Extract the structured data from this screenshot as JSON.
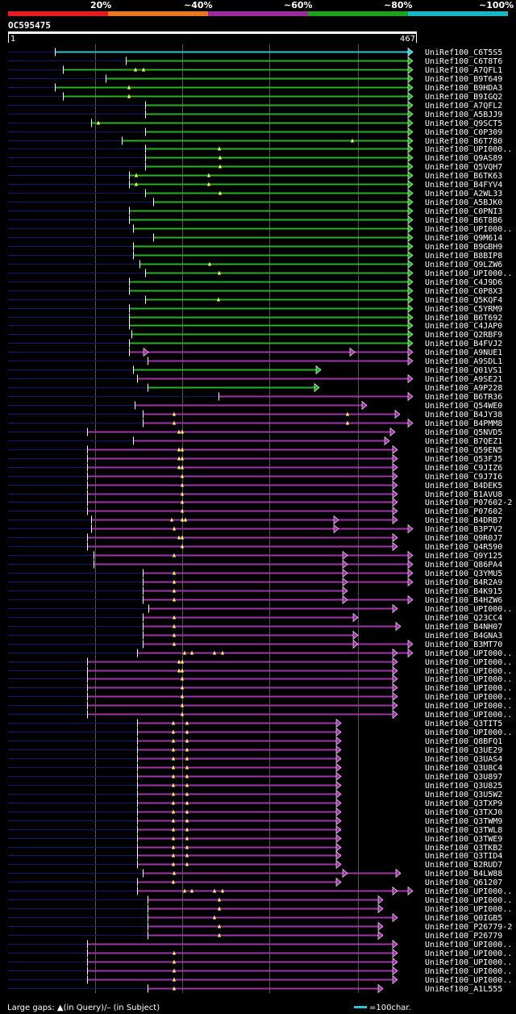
{
  "query_id": "OC595475",
  "ruler": {
    "start": "1",
    "end": "467"
  },
  "scale_labels": [
    "20%",
    "~40%",
    "~60%",
    "~80%",
    "~100%"
  ],
  "colors": {
    "seg1": "#e31b23",
    "seg2": "#e87722",
    "seg3": "#9b2c9e",
    "seg4": "#1f9e1f",
    "seg5": "#1bb5c3",
    "cyan": "#2bc6d6",
    "green": "#26b226",
    "purple": "#a033a8",
    "tail": "#101a6e",
    "grid": "#555555",
    "marker": "#ffff66"
  },
  "legend": {
    "gaps_text": "Large gaps: ▲(in Query)/– (in Subject)",
    "scale_text": "=100char."
  },
  "hits": [
    {
      "id": "UniRef100_C6T5S5",
      "c": "cyan",
      "s": 68,
      "e": 512,
      "m": []
    },
    {
      "id": "UniRef100_C6T8T6",
      "c": "green",
      "s": 156,
      "e": 512,
      "m": []
    },
    {
      "id": "UniRef100_A7QFL1",
      "c": "green",
      "s": 78,
      "e": 512,
      "m": [
        168,
        178
      ]
    },
    {
      "id": "UniRef100_B9T649",
      "c": "green",
      "s": 131,
      "e": 512,
      "m": []
    },
    {
      "id": "UniRef100_B9HDA3",
      "c": "green",
      "s": 68,
      "e": 512,
      "m": [
        160
      ]
    },
    {
      "id": "UniRef100_B9IGQ2",
      "c": "green",
      "s": 78,
      "e": 512,
      "m": [
        160
      ]
    },
    {
      "id": "UniRef100_A7QFL2",
      "c": "green",
      "s": 180,
      "e": 512,
      "m": []
    },
    {
      "id": "UniRef100_A5BJJ9",
      "c": "green",
      "s": 180,
      "e": 512,
      "m": []
    },
    {
      "id": "UniRef100_Q9SCT5",
      "c": "green",
      "s": 113,
      "e": 512,
      "m": [
        122
      ]
    },
    {
      "id": "UniRef100_C0P309",
      "c": "green",
      "s": 180,
      "e": 512,
      "m": []
    },
    {
      "id": "UniRef100_B6T780",
      "c": "green",
      "s": 151,
      "e": 512,
      "m": [
        437
      ]
    },
    {
      "id": "UniRef100_UPI000..",
      "c": "green",
      "s": 180,
      "e": 512,
      "m": [
        272
      ]
    },
    {
      "id": "UniRef100_Q9AS89",
      "c": "green",
      "s": 180,
      "e": 512,
      "m": [
        273
      ]
    },
    {
      "id": "UniRef100_Q5VQH7",
      "c": "green",
      "s": 180,
      "e": 512,
      "m": [
        273
      ]
    },
    {
      "id": "UniRef100_B6TK63",
      "c": "green",
      "s": 160,
      "e": 512,
      "m": [
        169,
        259
      ]
    },
    {
      "id": "UniRef100_B4FYV4",
      "c": "green",
      "s": 160,
      "e": 512,
      "m": [
        169,
        259
      ]
    },
    {
      "id": "UniRef100_A2WL33",
      "c": "green",
      "s": 180,
      "e": 512,
      "m": [
        273
      ]
    },
    {
      "id": "UniRef100_A5BJK0",
      "c": "green",
      "s": 190,
      "e": 512,
      "m": []
    },
    {
      "id": "UniRef100_C0PNI3",
      "c": "green",
      "s": 160,
      "e": 512,
      "m": []
    },
    {
      "id": "UniRef100_B6T8B6",
      "c": "green",
      "s": 160,
      "e": 512,
      "m": []
    },
    {
      "id": "UniRef100_UPI000..",
      "c": "green",
      "s": 165,
      "e": 512,
      "m": []
    },
    {
      "id": "UniRef100_Q9M614",
      "c": "green",
      "s": 190,
      "e": 512,
      "m": []
    },
    {
      "id": "UniRef100_B9GBH9",
      "c": "green",
      "s": 165,
      "e": 512,
      "m": []
    },
    {
      "id": "UniRef100_B8BIP8",
      "c": "green",
      "s": 165,
      "e": 512,
      "m": []
    },
    {
      "id": "UniRef100_Q9LZW6",
      "c": "green",
      "s": 173,
      "e": 512,
      "m": [
        260
      ]
    },
    {
      "id": "UniRef100_UPI000..",
      "c": "green",
      "s": 180,
      "e": 512,
      "m": [
        272
      ]
    },
    {
      "id": "UniRef100_C4J9D6",
      "c": "green",
      "s": 160,
      "e": 512,
      "m": []
    },
    {
      "id": "UniRef100_C0P8X3",
      "c": "green",
      "s": 160,
      "e": 512,
      "m": []
    },
    {
      "id": "UniRef100_Q5KQF4",
      "c": "green",
      "s": 180,
      "e": 512,
      "m": [
        271
      ]
    },
    {
      "id": "UniRef100_C5YRM9",
      "c": "green",
      "s": 160,
      "e": 512,
      "m": []
    },
    {
      "id": "UniRef100_B6T692",
      "c": "green",
      "s": 160,
      "e": 512,
      "m": []
    },
    {
      "id": "UniRef100_C4JAP0",
      "c": "green",
      "s": 160,
      "e": 512,
      "m": []
    },
    {
      "id": "UniRef100_Q2RBF9",
      "c": "green",
      "s": 163,
      "e": 512,
      "m": []
    },
    {
      "id": "UniRef100_B4FVJ2",
      "c": "green",
      "s": 160,
      "e": 512,
      "m": []
    },
    {
      "id": "UniRef100_A9NUE1",
      "c": "purple",
      "s": 160,
      "e": 512,
      "m": [],
      "g": [
        184,
        440
      ]
    },
    {
      "id": "UniRef100_A9SDL1",
      "c": "purple",
      "s": 183,
      "e": 512,
      "m": []
    },
    {
      "id": "UniRef100_Q01VS1",
      "c": "green",
      "s": 165,
      "e": 398,
      "m": []
    },
    {
      "id": "UniRef100_A9SE21",
      "c": "purple",
      "s": 170,
      "e": 512,
      "m": []
    },
    {
      "id": "UniRef100_A9P228",
      "c": "green",
      "s": 183,
      "e": 396,
      "m": []
    },
    {
      "id": "UniRef100_B6TR36",
      "c": "purple",
      "s": 271,
      "e": 512,
      "m": []
    },
    {
      "id": "UniRef100_Q54WE0",
      "c": "purple",
      "s": 167,
      "e": 455,
      "m": []
    },
    {
      "id": "UniRef100_B4JY38",
      "c": "purple",
      "s": 177,
      "e": 496,
      "m": [
        216,
        431
      ]
    },
    {
      "id": "UniRef100_B4PMM8",
      "c": "purple",
      "s": 177,
      "e": 512,
      "m": [
        216,
        431
      ]
    },
    {
      "id": "UniRef100_Q5NVD5",
      "c": "purple",
      "s": 108,
      "e": 490,
      "m": [
        222,
        226
      ]
    },
    {
      "id": "UniRef100_B7QEZ1",
      "c": "purple",
      "s": 165,
      "e": 483,
      "m": []
    },
    {
      "id": "UniRef100_Q59EN5",
      "c": "purple",
      "s": 108,
      "e": 493,
      "m": [
        222,
        226
      ]
    },
    {
      "id": "UniRef100_Q53FJ5",
      "c": "purple",
      "s": 108,
      "e": 493,
      "m": [
        222,
        226
      ]
    },
    {
      "id": "UniRef100_C9JIZ6",
      "c": "purple",
      "s": 108,
      "e": 493,
      "m": [
        222,
        226
      ]
    },
    {
      "id": "UniRef100_C9J7I6",
      "c": "purple",
      "s": 108,
      "e": 493,
      "m": [
        226
      ]
    },
    {
      "id": "UniRef100_B4DEK5",
      "c": "purple",
      "s": 108,
      "e": 493,
      "m": [
        226
      ]
    },
    {
      "id": "UniRef100_B1AVU8",
      "c": "purple",
      "s": 108,
      "e": 493,
      "m": [
        226
      ]
    },
    {
      "id": "UniRef100_P07602-2",
      "c": "purple",
      "s": 108,
      "e": 493,
      "m": [
        226
      ]
    },
    {
      "id": "UniRef100_P07602",
      "c": "purple",
      "s": 108,
      "e": 493,
      "m": [
        226
      ]
    },
    {
      "id": "UniRef100_B4DRB7",
      "c": "purple",
      "s": 113,
      "e": 493,
      "m": [
        213,
        226,
        230
      ],
      "g": [
        420
      ]
    },
    {
      "id": "UniRef100_B3P7V2",
      "c": "purple",
      "s": 113,
      "e": 512,
      "m": [
        216
      ],
      "g": [
        420
      ]
    },
    {
      "id": "UniRef100_Q9R0J7",
      "c": "purple",
      "s": 108,
      "e": 493,
      "m": [
        222,
        226
      ]
    },
    {
      "id": "UniRef100_Q4R590",
      "c": "purple",
      "s": 108,
      "e": 493,
      "m": [
        226
      ]
    },
    {
      "id": "UniRef100_Q9Y125",
      "c": "purple",
      "s": 116,
      "e": 512,
      "m": [
        216
      ],
      "g": [
        431
      ]
    },
    {
      "id": "UniRef100_Q86PA4",
      "c": "purple",
      "s": 116,
      "e": 512,
      "m": [],
      "g": [
        431
      ]
    },
    {
      "id": "UniRef100_Q3YMU5",
      "c": "purple",
      "s": 177,
      "e": 512,
      "m": [
        216
      ],
      "g": [
        431
      ]
    },
    {
      "id": "UniRef100_B4R2A9",
      "c": "purple",
      "s": 177,
      "e": 512,
      "m": [
        216
      ],
      "g": [
        431
      ]
    },
    {
      "id": "UniRef100_B4K915",
      "c": "purple",
      "s": 177,
      "e": 431,
      "m": [
        216
      ]
    },
    {
      "id": "UniRef100_B4HZW6",
      "c": "purple",
      "s": 177,
      "e": 512,
      "m": [
        216
      ],
      "g": [
        431
      ]
    },
    {
      "id": "UniRef100_UPI000..",
      "c": "purple",
      "s": 184,
      "e": 493,
      "m": []
    },
    {
      "id": "UniRef100_Q23CC4",
      "c": "purple",
      "s": 177,
      "e": 444,
      "m": [
        216
      ]
    },
    {
      "id": "UniRef100_B4NH07",
      "c": "purple",
      "s": 177,
      "e": 497,
      "m": [
        216
      ]
    },
    {
      "id": "UniRef100_B4GNA3",
      "c": "purple",
      "s": 177,
      "e": 444,
      "m": [
        216
      ]
    },
    {
      "id": "UniRef100_B3MT70",
      "c": "purple",
      "s": 177,
      "e": 512,
      "m": [
        216
      ],
      "g": [
        444
      ]
    },
    {
      "id": "UniRef100_UPI000..",
      "c": "purple",
      "s": 170,
      "e": 512,
      "m": [
        229,
        238,
        266,
        276
      ],
      "g": [
        493
      ]
    },
    {
      "id": "UniRef100_UPI000..",
      "c": "purple",
      "s": 108,
      "e": 493,
      "m": [
        222,
        226
      ]
    },
    {
      "id": "UniRef100_UPI000..",
      "c": "purple",
      "s": 108,
      "e": 493,
      "m": [
        222,
        226
      ]
    },
    {
      "id": "UniRef100_UPI000..",
      "c": "purple",
      "s": 108,
      "e": 493,
      "m": [
        226
      ]
    },
    {
      "id": "UniRef100_UPI000..",
      "c": "purple",
      "s": 108,
      "e": 493,
      "m": [
        226
      ]
    },
    {
      "id": "UniRef100_UPI000..",
      "c": "purple",
      "s": 108,
      "e": 493,
      "m": [
        226
      ]
    },
    {
      "id": "UniRef100_UPI000..",
      "c": "purple",
      "s": 108,
      "e": 493,
      "m": [
        226
      ]
    },
    {
      "id": "UniRef100_UPI000..",
      "c": "purple",
      "s": 108,
      "e": 493,
      "m": [
        226
      ]
    },
    {
      "id": "UniRef100_Q3TIT5",
      "c": "purple",
      "s": 170,
      "e": 423,
      "m": [
        215,
        232
      ]
    },
    {
      "id": "UniRef100_UPI000..",
      "c": "purple",
      "s": 170,
      "e": 423,
      "m": [
        215,
        232
      ]
    },
    {
      "id": "UniRef100_Q8BFQ1",
      "c": "purple",
      "s": 170,
      "e": 423,
      "m": [
        215,
        232
      ]
    },
    {
      "id": "UniRef100_Q3UE29",
      "c": "purple",
      "s": 170,
      "e": 423,
      "m": [
        215,
        232
      ]
    },
    {
      "id": "UniRef100_Q3UAS4",
      "c": "purple",
      "s": 170,
      "e": 423,
      "m": [
        215,
        232
      ]
    },
    {
      "id": "UniRef100_Q3U8C4",
      "c": "purple",
      "s": 170,
      "e": 423,
      "m": [
        215,
        232
      ]
    },
    {
      "id": "UniRef100_Q3U897",
      "c": "purple",
      "s": 170,
      "e": 423,
      "m": [
        215,
        232
      ]
    },
    {
      "id": "UniRef100_Q3U825",
      "c": "purple",
      "s": 170,
      "e": 423,
      "m": [
        215,
        232
      ]
    },
    {
      "id": "UniRef100_Q3U5W2",
      "c": "purple",
      "s": 170,
      "e": 423,
      "m": [
        215,
        232
      ]
    },
    {
      "id": "UniRef100_Q3TXP9",
      "c": "purple",
      "s": 170,
      "e": 423,
      "m": [
        215,
        232
      ]
    },
    {
      "id": "UniRef100_Q3TXJ0",
      "c": "purple",
      "s": 170,
      "e": 423,
      "m": [
        215,
        232
      ]
    },
    {
      "id": "UniRef100_Q3TWM9",
      "c": "purple",
      "s": 170,
      "e": 423,
      "m": [
        215,
        232
      ]
    },
    {
      "id": "UniRef100_Q3TWL8",
      "c": "purple",
      "s": 170,
      "e": 423,
      "m": [
        215,
        232
      ]
    },
    {
      "id": "UniRef100_Q3TWE9",
      "c": "purple",
      "s": 170,
      "e": 423,
      "m": [
        215,
        232
      ]
    },
    {
      "id": "UniRef100_Q3TKB2",
      "c": "purple",
      "s": 170,
      "e": 423,
      "m": [
        215,
        232
      ]
    },
    {
      "id": "UniRef100_Q3TID4",
      "c": "purple",
      "s": 170,
      "e": 423,
      "m": [
        215,
        232
      ]
    },
    {
      "id": "UniRef100_B2RUD7",
      "c": "purple",
      "s": 170,
      "e": 423,
      "m": [
        215,
        232
      ]
    },
    {
      "id": "UniRef100_B4LW88",
      "c": "purple",
      "s": 177,
      "e": 497,
      "m": [
        216
      ],
      "g": [
        431
      ]
    },
    {
      "id": "UniRef100_Q61207",
      "c": "purple",
      "s": 170,
      "e": 423,
      "m": [
        215
      ]
    },
    {
      "id": "UniRef100_UPI000..",
      "c": "purple",
      "s": 170,
      "e": 512,
      "m": [
        229,
        238,
        266,
        276
      ],
      "g": [
        493
      ]
    },
    {
      "id": "UniRef100_UPI000..",
      "c": "purple",
      "s": 183,
      "e": 475,
      "m": [
        272
      ]
    },
    {
      "id": "UniRef100_UPI000..",
      "c": "purple",
      "s": 183,
      "e": 475,
      "m": [
        272
      ]
    },
    {
      "id": "UniRef100_Q0IGB5",
      "c": "purple",
      "s": 183,
      "e": 493,
      "m": [
        266
      ]
    },
    {
      "id": "UniRef100_P26779-2",
      "c": "purple",
      "s": 183,
      "e": 475,
      "m": [
        272
      ]
    },
    {
      "id": "UniRef100_P26779",
      "c": "purple",
      "s": 183,
      "e": 475,
      "m": [
        272
      ]
    },
    {
      "id": "UniRef100_UPI000..",
      "c": "purple",
      "s": 108,
      "e": 493,
      "m": []
    },
    {
      "id": "UniRef100_UPI000..",
      "c": "purple",
      "s": 108,
      "e": 493,
      "m": [
        216
      ]
    },
    {
      "id": "UniRef100_UPI000..",
      "c": "purple",
      "s": 108,
      "e": 493,
      "m": [
        216
      ]
    },
    {
      "id": "UniRef100_UPI000..",
      "c": "purple",
      "s": 108,
      "e": 493,
      "m": [
        216
      ]
    },
    {
      "id": "UniRef100_UPI000..",
      "c": "purple",
      "s": 108,
      "e": 493,
      "m": [
        216
      ]
    },
    {
      "id": "UniRef100_A1L555",
      "c": "purple",
      "s": 183,
      "e": 475,
      "m": [
        216
      ]
    }
  ]
}
